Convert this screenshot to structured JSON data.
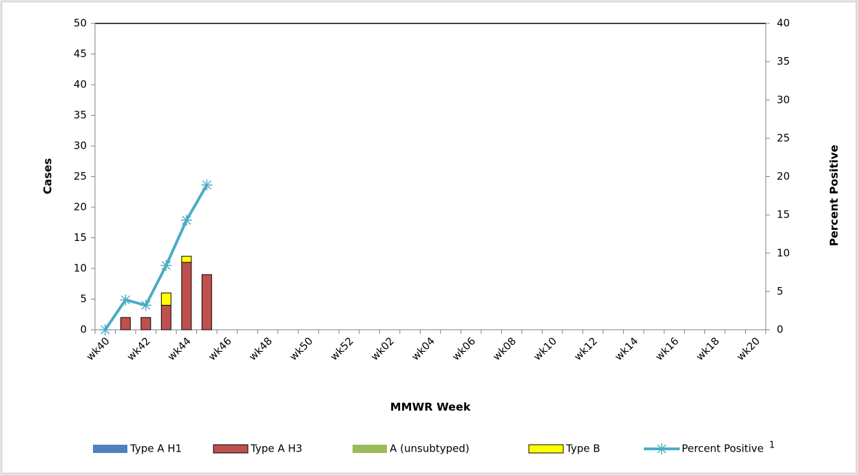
{
  "chart_data": {
    "type": "bar-line",
    "y_label": "Cases",
    "y2_label": "Percent Positive",
    "x_label": "MMWR Week",
    "categories": [
      "wk40",
      null,
      "wk42",
      null,
      "wk44",
      null,
      "wk46",
      null,
      "wk48",
      null,
      "wk50",
      null,
      "wk52",
      null,
      "wk02",
      null,
      "wk04",
      null,
      "wk06",
      null,
      "wk08",
      null,
      "wk10",
      null,
      "wk12",
      null,
      "wk14",
      null,
      "wk16",
      null,
      "wk18",
      null,
      "wk20"
    ],
    "series": [
      {
        "name": "Type A H1",
        "color": "#4f81bd",
        "values": [
          0,
          0,
          0,
          0,
          0,
          0,
          null,
          null,
          null,
          null,
          null,
          null,
          null,
          null,
          null,
          null,
          null,
          null,
          null,
          null,
          null,
          null,
          null,
          null,
          null,
          null,
          null,
          null,
          null,
          null,
          null,
          null,
          null
        ]
      },
      {
        "name": "Type A H3",
        "color": "#c0504d",
        "values": [
          0,
          2,
          2,
          4,
          11,
          9,
          null,
          null,
          null,
          null,
          null,
          null,
          null,
          null,
          null,
          null,
          null,
          null,
          null,
          null,
          null,
          null,
          null,
          null,
          null,
          null,
          null,
          null,
          null,
          null,
          null,
          null,
          null
        ]
      },
      {
        "name": "A (unsubtyped)",
        "color": "#9bbb59",
        "values": [
          0,
          0,
          0,
          0,
          0,
          0,
          null,
          null,
          null,
          null,
          null,
          null,
          null,
          null,
          null,
          null,
          null,
          null,
          null,
          null,
          null,
          null,
          null,
          null,
          null,
          null,
          null,
          null,
          null,
          null,
          null,
          null,
          null
        ]
      },
      {
        "name": "Type B",
        "color": "#ffff00",
        "values": [
          0,
          0,
          0,
          2,
          1,
          0,
          null,
          null,
          null,
          null,
          null,
          null,
          null,
          null,
          null,
          null,
          null,
          null,
          null,
          null,
          null,
          null,
          null,
          null,
          null,
          null,
          null,
          null,
          null,
          null,
          null,
          null,
          null
        ]
      },
      {
        "name": "Percent Positive",
        "color": "#4bacc6",
        "axis": "y2",
        "kind": "line",
        "values": [
          0,
          3.9,
          3.2,
          8.4,
          14.3,
          18.9,
          null,
          null,
          null,
          null,
          null,
          null,
          null,
          null,
          null,
          null,
          null,
          null,
          null,
          null,
          null,
          null,
          null,
          null,
          null,
          null,
          null,
          null,
          null,
          null,
          null,
          null,
          null
        ]
      }
    ],
    "legend_note": "1",
    "ylim": [
      0,
      50
    ],
    "yticks": [
      0,
      5,
      10,
      15,
      20,
      25,
      30,
      35,
      40,
      45,
      50
    ],
    "y2lim": [
      0,
      40
    ],
    "y2ticks": [
      0,
      5,
      10,
      15,
      20,
      25,
      30,
      35,
      40
    ],
    "stacked": true,
    "legend": "bottom"
  }
}
